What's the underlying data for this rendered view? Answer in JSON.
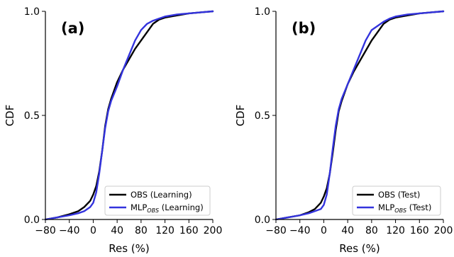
{
  "chart_data": [
    {
      "type": "line",
      "panel_label": "(a)",
      "xlabel": "Res (%)",
      "ylabel": "CDF",
      "xlim": [
        -80,
        200
      ],
      "ylim": [
        0,
        1
      ],
      "xticks": [
        -80,
        -40,
        0,
        40,
        80,
        120,
        160,
        200
      ],
      "yticks": [
        0.0,
        0.5,
        1.0
      ],
      "xtick_labels": [
        "−80",
        "−40",
        "0",
        "40",
        "80",
        "120",
        "160",
        "200"
      ],
      "ytick_labels": [
        "0.0",
        "0.5",
        "1.0"
      ],
      "legend_position": "lower-right",
      "series": [
        {
          "name": "OBS (Learning)",
          "legend_main": "OBS (Learning)",
          "legend_sub": "",
          "legend_rest": "",
          "color": "#000000",
          "x": [
            -80,
            -60,
            -40,
            -25,
            -15,
            -5,
            0,
            5,
            10,
            15,
            20,
            25,
            30,
            40,
            50,
            60,
            70,
            80,
            90,
            100,
            110,
            120,
            140,
            160,
            180,
            200
          ],
          "y": [
            0.0,
            0.01,
            0.025,
            0.04,
            0.06,
            0.09,
            0.12,
            0.16,
            0.23,
            0.33,
            0.45,
            0.53,
            0.58,
            0.66,
            0.72,
            0.77,
            0.82,
            0.86,
            0.9,
            0.94,
            0.96,
            0.97,
            0.98,
            0.99,
            0.995,
            1.0
          ]
        },
        {
          "name": "MLP_OBS (Learning)",
          "legend_main": "MLP",
          "legend_sub": "OBS",
          "legend_rest": " (Learning)",
          "color": "#3333dd",
          "x": [
            -80,
            -60,
            -40,
            -25,
            -15,
            -5,
            0,
            5,
            10,
            15,
            20,
            25,
            30,
            40,
            50,
            60,
            70,
            80,
            90,
            100,
            110,
            120,
            140,
            160,
            180,
            200
          ],
          "y": [
            0.0,
            0.01,
            0.02,
            0.03,
            0.04,
            0.06,
            0.08,
            0.13,
            0.22,
            0.33,
            0.44,
            0.52,
            0.57,
            0.64,
            0.72,
            0.79,
            0.86,
            0.91,
            0.94,
            0.955,
            0.965,
            0.975,
            0.985,
            0.99,
            0.995,
            1.0
          ]
        }
      ]
    },
    {
      "type": "line",
      "panel_label": "(b)",
      "xlabel": "Res (%)",
      "ylabel": "CDF",
      "xlim": [
        -80,
        200
      ],
      "ylim": [
        0,
        1
      ],
      "xticks": [
        -80,
        -40,
        0,
        40,
        80,
        120,
        160,
        200
      ],
      "yticks": [
        0.0,
        0.5,
        1.0
      ],
      "xtick_labels": [
        "−80",
        "−40",
        "0",
        "40",
        "80",
        "120",
        "160",
        "200"
      ],
      "ytick_labels": [
        "0.0",
        "0.5",
        "1.0"
      ],
      "legend_position": "lower-right",
      "series": [
        {
          "name": "OBS (Test)",
          "legend_main": "OBS (Test)",
          "legend_sub": "",
          "legend_rest": "",
          "color": "#000000",
          "x": [
            -80,
            -60,
            -40,
            -25,
            -15,
            -5,
            0,
            5,
            10,
            15,
            20,
            25,
            30,
            40,
            50,
            60,
            70,
            80,
            90,
            100,
            110,
            120,
            140,
            160,
            180,
            200
          ],
          "y": [
            0.0,
            0.01,
            0.02,
            0.035,
            0.05,
            0.08,
            0.11,
            0.15,
            0.22,
            0.32,
            0.43,
            0.52,
            0.57,
            0.65,
            0.71,
            0.76,
            0.81,
            0.86,
            0.9,
            0.94,
            0.96,
            0.97,
            0.98,
            0.99,
            0.995,
            1.0
          ]
        },
        {
          "name": "MLP_OBS (Test)",
          "legend_main": "MLP",
          "legend_sub": "OBS",
          "legend_rest": " (Test)",
          "color": "#3333dd",
          "x": [
            -80,
            -60,
            -40,
            -25,
            -15,
            -5,
            0,
            5,
            10,
            15,
            20,
            25,
            30,
            40,
            50,
            60,
            70,
            80,
            90,
            100,
            110,
            120,
            140,
            160,
            180,
            200
          ],
          "y": [
            0.0,
            0.01,
            0.02,
            0.03,
            0.04,
            0.05,
            0.07,
            0.12,
            0.22,
            0.34,
            0.45,
            0.53,
            0.58,
            0.65,
            0.72,
            0.79,
            0.86,
            0.91,
            0.93,
            0.95,
            0.965,
            0.975,
            0.985,
            0.99,
            0.995,
            1.0
          ]
        }
      ]
    }
  ]
}
